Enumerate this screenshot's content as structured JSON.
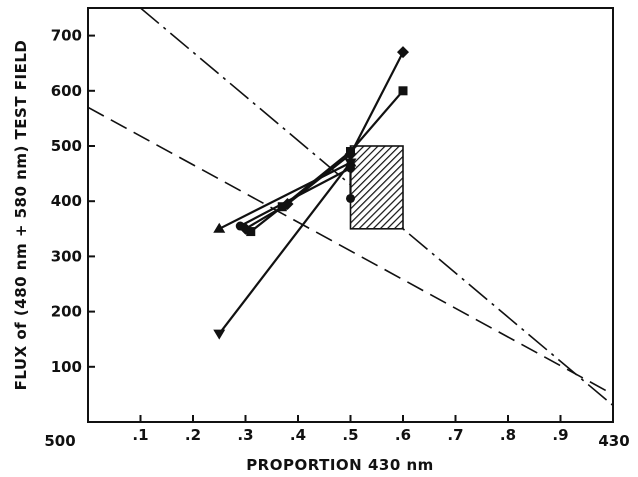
{
  "chart_data": {
    "type": "line",
    "title": "",
    "xlabel": "PROPORTION  430 nm",
    "ylabel": "FLUX of (480 nm + 580 nm) TEST FIELD",
    "xlim": [
      0,
      1
    ],
    "ylim": [
      0,
      750
    ],
    "x_ticks": [
      0.1,
      0.2,
      0.3,
      0.4,
      0.5,
      0.6,
      0.7,
      0.8,
      0.9
    ],
    "x_tick_labels": [
      ".1",
      ".2",
      ".3",
      ".4",
      ".5",
      ".6",
      ".7",
      ".8",
      ".9"
    ],
    "x_end_labels": {
      "left": "500",
      "right": "430"
    },
    "y_ticks": [
      100,
      200,
      300,
      400,
      500,
      600,
      700
    ],
    "y_tick_labels": [
      "100",
      "200",
      "300",
      "400",
      "500",
      "600",
      "700"
    ],
    "grid": false,
    "series": [
      {
        "marker": "triangle-up",
        "x": [
          0.25,
          0.5
        ],
        "y": [
          350,
          470
        ]
      },
      {
        "marker": "triangle-down",
        "x": [
          0.25,
          0.5
        ],
        "y": [
          160,
          470
        ]
      },
      {
        "marker": "circle",
        "x": [
          0.29,
          0.5,
          0.5
        ],
        "y": [
          355,
          460,
          405
        ]
      },
      {
        "marker": "square",
        "x": [
          0.31,
          0.37,
          0.5,
          0.6
        ],
        "y": [
          345,
          390,
          490,
          600
        ]
      },
      {
        "marker": "diamond",
        "x": [
          0.3,
          0.38,
          0.5,
          0.6
        ],
        "y": [
          350,
          395,
          485,
          670
        ]
      }
    ],
    "reference_lines": [
      {
        "style": "dashed",
        "x": [
          0,
          1
        ],
        "y": [
          570,
          50
        ]
      },
      {
        "style": "dash-dot",
        "x": [
          0.1,
          1
        ],
        "y": [
          750,
          30
        ]
      }
    ],
    "shaded_region": {
      "x": [
        0.5,
        0.6
      ],
      "y": [
        350,
        500
      ],
      "pattern": "diagonal-hatch"
    }
  }
}
